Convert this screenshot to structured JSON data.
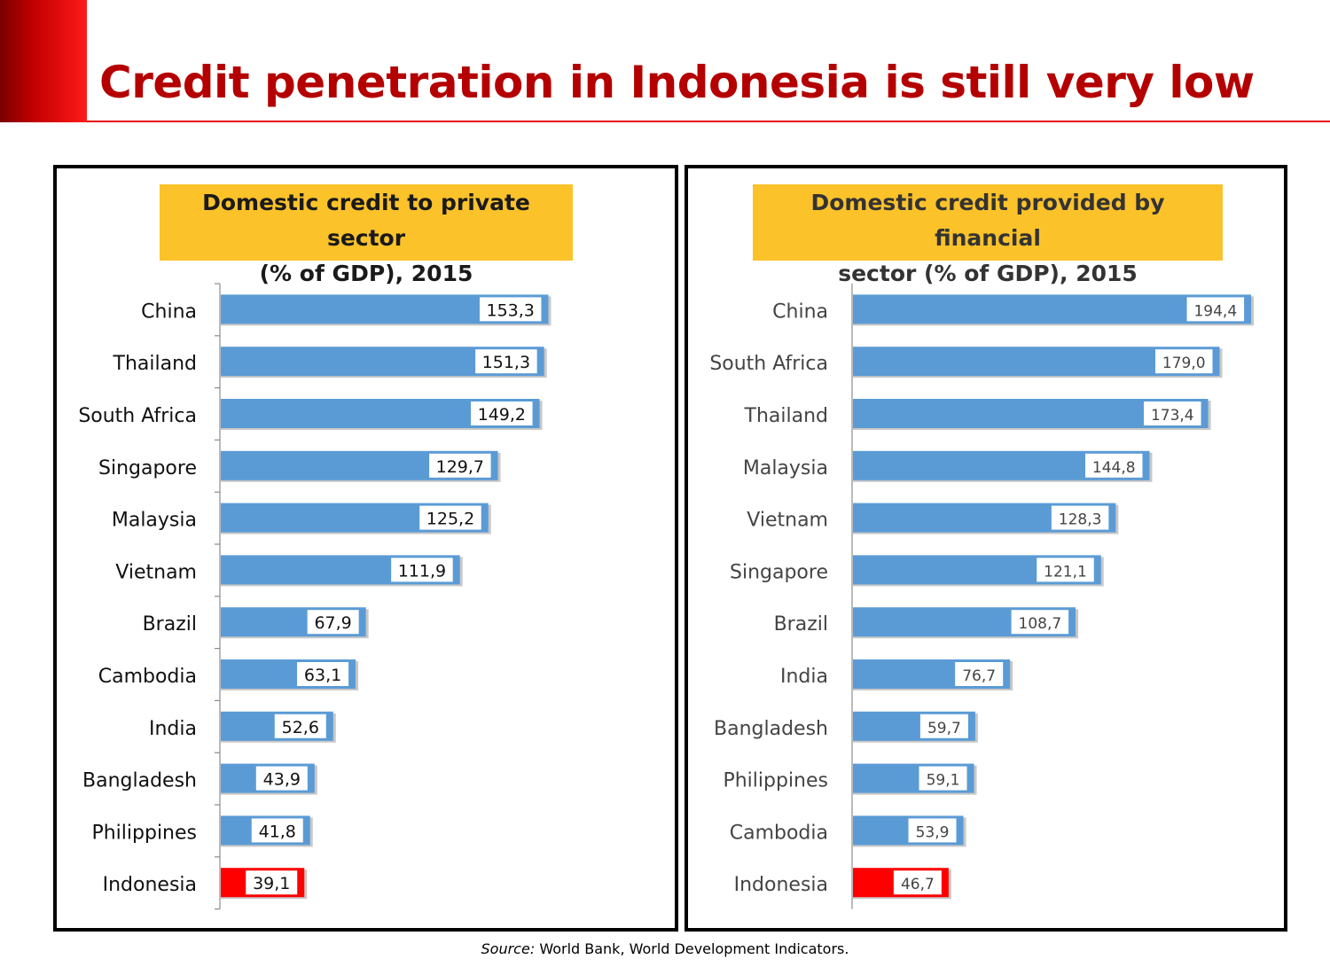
{
  "slide": {
    "title": "Credit penetration in Indonesia is still very low",
    "source_label": "Source:",
    "source_text": "World Bank, World Development Indicators."
  },
  "colors": {
    "bar": "#5b9bd5",
    "highlight": "#ff0000",
    "title_red": "#b40000",
    "chart_title_bg": "#fcc22a"
  },
  "chart_data": [
    {
      "type": "bar",
      "orientation": "horizontal",
      "title": "Domestic credit to private sector (% of GDP), 2015",
      "title_lines": [
        "Domestic credit to private sector",
        "(% of GDP), 2015"
      ],
      "categories": [
        "China",
        "Thailand",
        "South Africa",
        "Singapore",
        "Malaysia",
        "Vietnam",
        "Brazil",
        "Cambodia",
        "India",
        "Bangladesh",
        "Philippines",
        "Indonesia"
      ],
      "values": [
        153.3,
        151.3,
        149.2,
        129.7,
        125.2,
        111.9,
        67.9,
        63.1,
        52.6,
        43.9,
        41.8,
        39.1
      ],
      "value_labels": [
        "153,3",
        "151,3",
        "149,2",
        "129,7",
        "125,2",
        "111,9",
        "67,9",
        "63,1",
        "52,6",
        "43,9",
        "41,8",
        "39,1"
      ],
      "highlight": "Indonesia",
      "xlim": [
        0,
        160
      ],
      "grid": false
    },
    {
      "type": "bar",
      "orientation": "horizontal",
      "title": "Domestic credit provided by financial sector (% of GDP), 2015",
      "title_lines": [
        "Domestic credit provided by financial",
        "sector (% of GDP), 2015"
      ],
      "categories": [
        "China",
        "South Africa",
        "Thailand",
        "Malaysia",
        "Vietnam",
        "Singapore",
        "Brazil",
        "India",
        "Bangladesh",
        "Philippines",
        "Cambodia",
        "Indonesia"
      ],
      "values": [
        194.4,
        179.0,
        173.4,
        144.8,
        128.3,
        121.1,
        108.7,
        76.7,
        59.7,
        59.1,
        53.9,
        46.7
      ],
      "value_labels": [
        "194,4",
        "179,0",
        "173,4",
        "144,8",
        "128,3",
        "121,1",
        "108,7",
        "76,7",
        "59,7",
        "59,1",
        "53,9",
        "46,7"
      ],
      "highlight": "Indonesia",
      "xlim": [
        0,
        200
      ],
      "grid": false
    }
  ]
}
